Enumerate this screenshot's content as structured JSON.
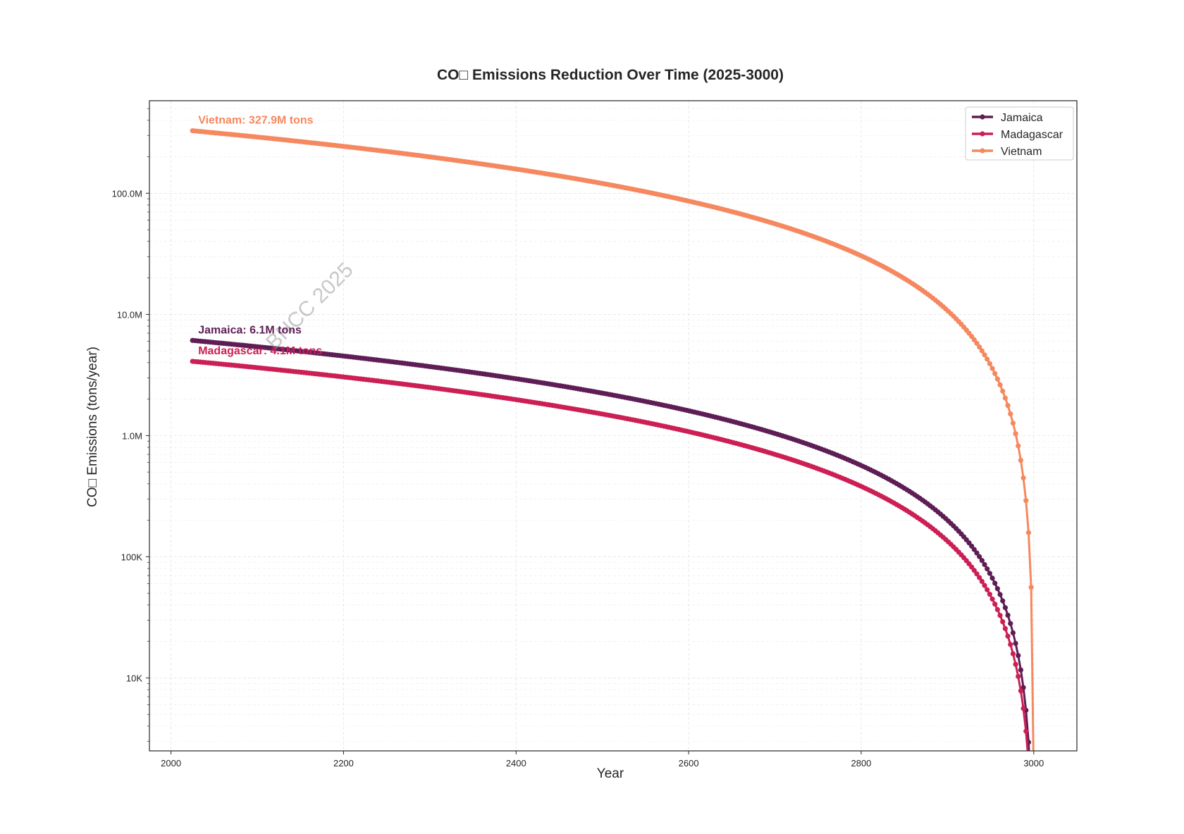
{
  "chart_data": {
    "type": "line",
    "title": "CO□ Emissions Reduction Over Time (2025-3000)",
    "xlabel": "Year",
    "ylabel": "CO□ Emissions (tons/year)",
    "xlim": [
      1975,
      3050
    ],
    "ylim": [
      2500,
      580000000
    ],
    "yscale": "log",
    "x_ticks": [
      2000,
      2200,
      2400,
      2600,
      2800,
      3000
    ],
    "x_tick_labels": [
      "2000",
      "2200",
      "2400",
      "2600",
      "2800",
      "3000"
    ],
    "y_ticks": [
      10000,
      100000,
      1000000,
      10000000,
      100000000
    ],
    "y_tick_labels": [
      "10K",
      "100K",
      "1.0M",
      "10.0M",
      "100.0M"
    ],
    "grid": true,
    "legend_position": "top-right",
    "model": "value = start * (1 - (year - 2025) / 975) ^ 1.5, sampled every 3 years",
    "series": [
      {
        "name": "Jamaica",
        "color": "#5e1e55",
        "start_value": 6100000,
        "start_year": 2025,
        "end_year": 3000,
        "decay_exponent": 1.5
      },
      {
        "name": "Madagascar",
        "color": "#cc1f55",
        "start_value": 4100000,
        "start_year": 2025,
        "end_year": 3000,
        "decay_exponent": 1.5
      },
      {
        "name": "Vietnam",
        "color": "#f5885f",
        "start_value": 327900000,
        "start_year": 2025,
        "end_year": 3000,
        "decay_exponent": 1.5
      }
    ],
    "annotations": [
      {
        "text": "Vietnam: 327.9M tons",
        "series": "Vietnam",
        "year": 2025,
        "value": 327900000
      },
      {
        "text": "Jamaica: 6.1M tons",
        "series": "Jamaica",
        "year": 2025,
        "value": 6100000
      },
      {
        "text": "Madagascar: 4.1M tons",
        "series": "Madagascar",
        "year": 2025,
        "value": 4100000
      }
    ],
    "watermark": "BHCC 2025"
  }
}
